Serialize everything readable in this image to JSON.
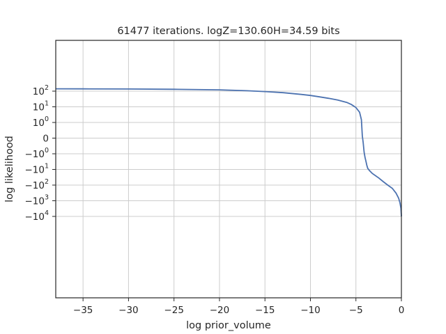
{
  "chart_data": {
    "type": "line",
    "title": "61477 iterations. logZ=130.60H=34.59 bits",
    "xlabel": "log prior_volume",
    "ylabel": "log likelihood",
    "xlim": [
      -38,
      0
    ],
    "y_scale": "symlog",
    "grid": true,
    "x_ticks": [
      {
        "value": -35,
        "label": "−35"
      },
      {
        "value": -30,
        "label": "−30"
      },
      {
        "value": -25,
        "label": "−25"
      },
      {
        "value": -20,
        "label": "−20"
      },
      {
        "value": -15,
        "label": "−15"
      },
      {
        "value": -10,
        "label": "−10"
      },
      {
        "value": -5,
        "label": "−5"
      },
      {
        "value": 0,
        "label": "0"
      }
    ],
    "y_ticks": [
      {
        "value": 100,
        "base": "10",
        "exp": "2",
        "sign": ""
      },
      {
        "value": 10,
        "base": "10",
        "exp": "1",
        "sign": ""
      },
      {
        "value": 1,
        "base": "10",
        "exp": "0",
        "sign": ""
      },
      {
        "value": 0,
        "base": "0",
        "exp": "",
        "sign": ""
      },
      {
        "value": -1,
        "base": "10",
        "exp": "0",
        "sign": "−"
      },
      {
        "value": -10,
        "base": "10",
        "exp": "1",
        "sign": "−"
      },
      {
        "value": -100,
        "base": "10",
        "exp": "2",
        "sign": "−"
      },
      {
        "value": -1000,
        "base": "10",
        "exp": "3",
        "sign": "−"
      },
      {
        "value": -10000,
        "base": "10",
        "exp": "4",
        "sign": "−"
      }
    ],
    "series": [
      {
        "color": "#4c72b0",
        "x": [
          -38,
          -35,
          -30,
          -25,
          -20,
          -17,
          -15,
          -13,
          -11,
          -10,
          -9,
          -8,
          -7,
          -6,
          -5.5,
          -5,
          -4.6,
          -4.4,
          -4.3,
          -4.2,
          -4.1,
          -4.0,
          -3.9,
          -3.8,
          -3.7,
          -3.5,
          -3.2,
          -2.5,
          -2.0,
          -1.5,
          -1.0,
          -0.6,
          -0.3,
          -0.15,
          -0.05,
          0
        ],
        "y": [
          141,
          140,
          138,
          132,
          122,
          106,
          94,
          80,
          62,
          53,
          43,
          35,
          27,
          19,
          14,
          9,
          4.5,
          1.5,
          0.15,
          -0.3,
          -0.9,
          -1.7,
          -3.0,
          -5.5,
          -8.5,
          -12,
          -18,
          -35,
          -60,
          -100,
          -160,
          -320,
          -700,
          -1400,
          -3000,
          -10000
        ]
      }
    ]
  }
}
